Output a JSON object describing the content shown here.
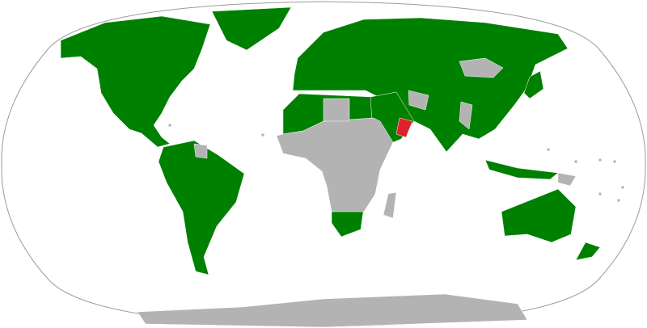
{
  "map": {
    "colors": {
      "included": "#008000",
      "not_included": "#b3b3b3",
      "highlighted": "#e0202a",
      "border": "#ffffff",
      "outline": "#9a9a9a"
    }
  }
}
